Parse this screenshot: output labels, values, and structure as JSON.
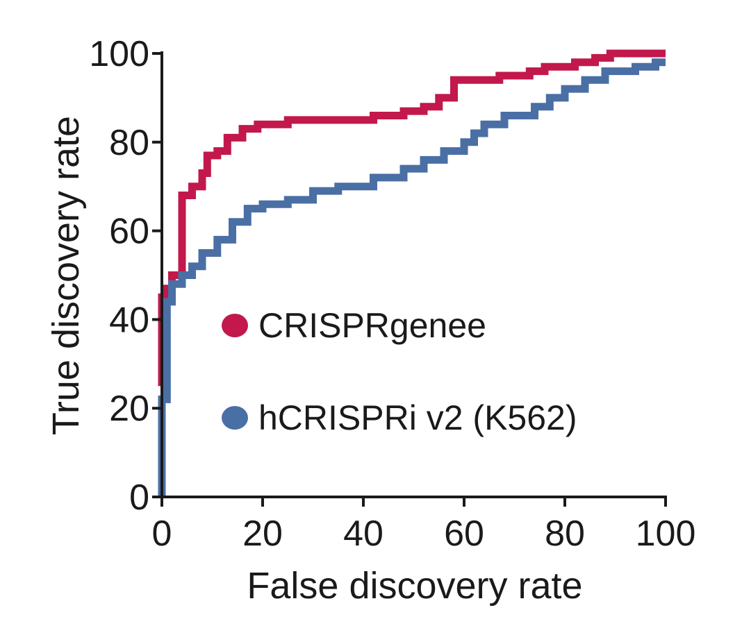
{
  "chart_data": {
    "type": "line",
    "xlabel": "False discovery rate",
    "ylabel": "True discovery rate",
    "xlim": [
      0,
      100
    ],
    "ylim": [
      0,
      100
    ],
    "xticks": [
      0,
      20,
      40,
      60,
      80,
      100
    ],
    "yticks": [
      0,
      20,
      40,
      60,
      80,
      100
    ],
    "grid": false,
    "legend_position": "center",
    "step_plot": true,
    "series": [
      {
        "name": "CRISPRgenee",
        "color": "#c2184b",
        "points": [
          [
            0,
            25
          ],
          [
            0,
            45
          ],
          [
            1,
            45
          ],
          [
            1,
            47
          ],
          [
            2,
            47
          ],
          [
            2,
            50
          ],
          [
            4,
            50
          ],
          [
            4,
            68
          ],
          [
            6,
            68
          ],
          [
            6,
            70
          ],
          [
            8,
            70
          ],
          [
            8,
            73
          ],
          [
            9,
            73
          ],
          [
            9,
            77
          ],
          [
            11,
            77
          ],
          [
            11,
            78
          ],
          [
            13,
            78
          ],
          [
            13,
            81
          ],
          [
            16,
            81
          ],
          [
            16,
            83
          ],
          [
            19,
            83
          ],
          [
            19,
            84
          ],
          [
            25,
            84
          ],
          [
            25,
            85
          ],
          [
            42,
            85
          ],
          [
            42,
            86
          ],
          [
            48,
            86
          ],
          [
            48,
            87
          ],
          [
            52,
            87
          ],
          [
            52,
            88
          ],
          [
            55,
            88
          ],
          [
            55,
            90
          ],
          [
            58,
            90
          ],
          [
            58,
            94
          ],
          [
            67,
            94
          ],
          [
            67,
            95
          ],
          [
            73,
            95
          ],
          [
            73,
            96
          ],
          [
            76,
            96
          ],
          [
            76,
            97
          ],
          [
            82,
            97
          ],
          [
            82,
            98
          ],
          [
            86,
            98
          ],
          [
            86,
            99
          ],
          [
            89,
            99
          ],
          [
            89,
            100
          ],
          [
            100,
            100
          ]
        ]
      },
      {
        "name": "hCRISPRi v2 (K562)",
        "color": "#4a6fa5",
        "points": [
          [
            0,
            0
          ],
          [
            0,
            22
          ],
          [
            1,
            22
          ],
          [
            1,
            44
          ],
          [
            2,
            44
          ],
          [
            2,
            48
          ],
          [
            4,
            48
          ],
          [
            4,
            50
          ],
          [
            6,
            50
          ],
          [
            6,
            52
          ],
          [
            8,
            52
          ],
          [
            8,
            55
          ],
          [
            11,
            55
          ],
          [
            11,
            58
          ],
          [
            14,
            58
          ],
          [
            14,
            62
          ],
          [
            17,
            62
          ],
          [
            17,
            65
          ],
          [
            20,
            65
          ],
          [
            20,
            66
          ],
          [
            25,
            66
          ],
          [
            25,
            67
          ],
          [
            30,
            67
          ],
          [
            30,
            69
          ],
          [
            35,
            69
          ],
          [
            35,
            70
          ],
          [
            42,
            70
          ],
          [
            42,
            72
          ],
          [
            48,
            72
          ],
          [
            48,
            74
          ],
          [
            52,
            74
          ],
          [
            52,
            76
          ],
          [
            56,
            76
          ],
          [
            56,
            78
          ],
          [
            60,
            78
          ],
          [
            60,
            80
          ],
          [
            62,
            80
          ],
          [
            62,
            82
          ],
          [
            64,
            82
          ],
          [
            64,
            84
          ],
          [
            68,
            84
          ],
          [
            68,
            86
          ],
          [
            74,
            86
          ],
          [
            74,
            88
          ],
          [
            77,
            88
          ],
          [
            77,
            90
          ],
          [
            80,
            90
          ],
          [
            80,
            92
          ],
          [
            84,
            92
          ],
          [
            84,
            94
          ],
          [
            88,
            94
          ],
          [
            88,
            96
          ],
          [
            94,
            96
          ],
          [
            94,
            97
          ],
          [
            98,
            97
          ],
          [
            98,
            98
          ],
          [
            100,
            98
          ]
        ]
      }
    ]
  }
}
